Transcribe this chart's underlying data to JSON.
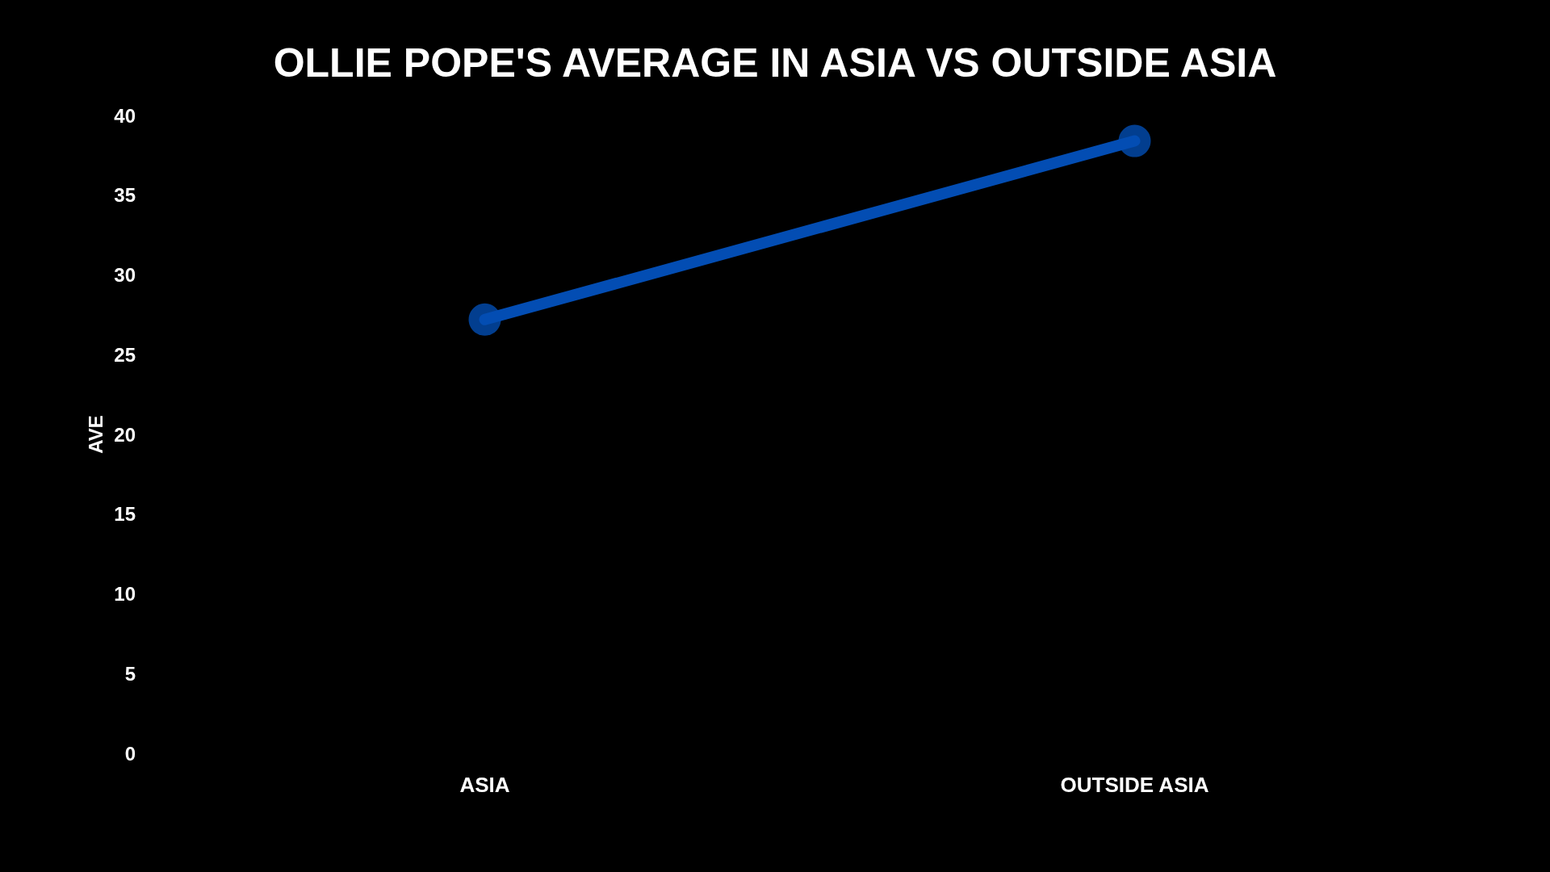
{
  "chart_data": {
    "type": "line",
    "title": "OLLIE POPE'S AVERAGE IN ASIA VS OUTSIDE ASIA",
    "ylabel": "AVE",
    "categories": [
      "ASIA",
      "OUTSIDE ASIA"
    ],
    "series": [
      {
        "color": "#034db3",
        "values": [
          27.2,
          38.4
        ]
      }
    ],
    "ylim": [
      0,
      40
    ],
    "yticks": [
      0,
      5,
      10,
      15,
      20,
      25,
      30,
      35,
      40
    ],
    "grid": false,
    "marker": "circle",
    "line_style": "solid"
  }
}
